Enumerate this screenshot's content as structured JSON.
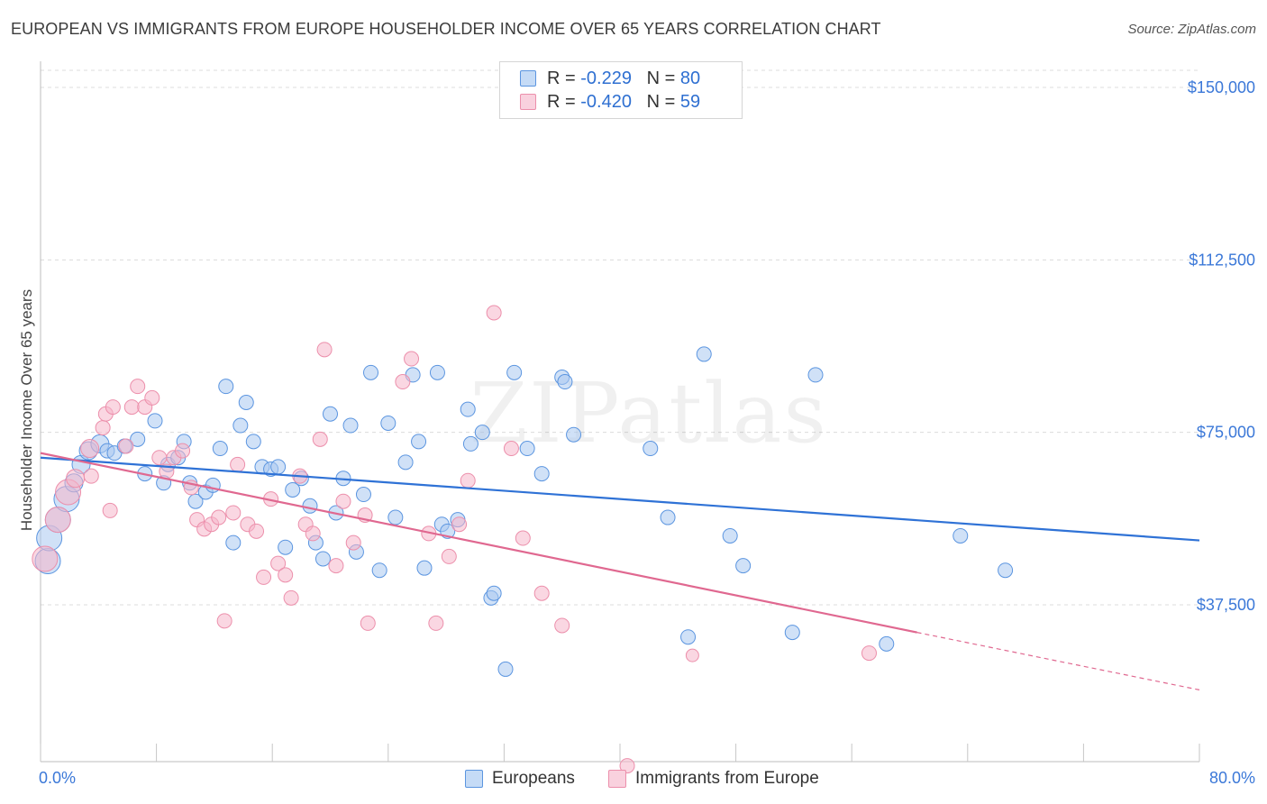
{
  "title": "EUROPEAN VS IMMIGRANTS FROM EUROPE HOUSEHOLDER INCOME OVER 65 YEARS CORRELATION CHART",
  "source": "Source: ZipAtlas.com",
  "watermark": "ZIPatlas",
  "legend": {
    "rows": [
      {
        "r_label": "R =",
        "r_value": "-0.229",
        "n_label": "N =",
        "n_value": "80",
        "color": "#a9c8f0"
      },
      {
        "r_label": "R =",
        "r_value": "-0.420",
        "n_label": "N =",
        "n_value": "59",
        "color": "#f6b7ca"
      }
    ]
  },
  "bottom_legend": [
    {
      "label": "Europeans",
      "color": "#a9c8f0"
    },
    {
      "label": "Immigrants from Europe",
      "color": "#f6b7ca"
    }
  ],
  "chart_data": {
    "type": "scatter",
    "ylabel": "Householder Income Over 65 years",
    "xlim": [
      0,
      80
    ],
    "ylim": [
      0,
      152000
    ],
    "x_tick_labels": [
      "0.0%",
      "80.0%"
    ],
    "y_ticks": [
      37500,
      75000,
      112500,
      150000
    ],
    "y_tick_labels": [
      "$37,500",
      "$75,000",
      "$112,500",
      "$150,000"
    ],
    "grid": true,
    "series": [
      {
        "name": "Europeans",
        "color": "#5b95e0",
        "fill": "#a9c8f0",
        "trend": {
          "x0": 0,
          "y0": 69500,
          "x1": 80,
          "y1": 51500,
          "color": "#2f72d6"
        },
        "points": [
          [
            0.5,
            47000,
            3
          ],
          [
            0.6,
            52000,
            3
          ],
          [
            1.2,
            56000,
            3
          ],
          [
            1.8,
            60500,
            3
          ],
          [
            2.3,
            64000,
            2
          ],
          [
            2.8,
            68000,
            2
          ],
          [
            3.3,
            71000,
            2
          ],
          [
            4.1,
            72500,
            2
          ],
          [
            4.6,
            71000,
            1
          ],
          [
            5.1,
            70500,
            1
          ],
          [
            5.8,
            72000,
            1
          ],
          [
            6.7,
            73500,
            1
          ],
          [
            7.2,
            66000,
            1
          ],
          [
            7.9,
            77500,
            1
          ],
          [
            8.5,
            64000,
            1
          ],
          [
            8.8,
            68000,
            1
          ],
          [
            9.5,
            69500,
            1
          ],
          [
            9.9,
            73000,
            1
          ],
          [
            10.3,
            64000,
            1
          ],
          [
            10.7,
            60000,
            1
          ],
          [
            11.4,
            62000,
            1
          ],
          [
            11.9,
            63500,
            1
          ],
          [
            12.4,
            71500,
            1
          ],
          [
            12.8,
            85000,
            1
          ],
          [
            13.3,
            51000,
            1
          ],
          [
            13.8,
            76500,
            1
          ],
          [
            14.2,
            81500,
            1
          ],
          [
            14.7,
            73000,
            1
          ],
          [
            15.3,
            67500,
            1
          ],
          [
            15.9,
            67000,
            1
          ],
          [
            16.4,
            67500,
            1
          ],
          [
            16.9,
            50000,
            1
          ],
          [
            17.4,
            62500,
            1
          ],
          [
            18.0,
            65000,
            1
          ],
          [
            18.6,
            59000,
            1
          ],
          [
            19.0,
            51000,
            1
          ],
          [
            19.5,
            47500,
            1
          ],
          [
            20.0,
            79000,
            1
          ],
          [
            20.4,
            57500,
            1
          ],
          [
            20.9,
            65000,
            1
          ],
          [
            21.4,
            76500,
            1
          ],
          [
            21.8,
            49000,
            1
          ],
          [
            22.3,
            61500,
            1
          ],
          [
            22.8,
            88000,
            1
          ],
          [
            23.4,
            45000,
            1
          ],
          [
            24.0,
            77000,
            1
          ],
          [
            24.5,
            56500,
            1
          ],
          [
            25.2,
            68500,
            1
          ],
          [
            25.7,
            87500,
            1
          ],
          [
            26.1,
            73000,
            1
          ],
          [
            26.5,
            45500,
            1
          ],
          [
            27.4,
            88000,
            1
          ],
          [
            27.7,
            55000,
            1
          ],
          [
            28.1,
            53500,
            1
          ],
          [
            28.8,
            56000,
            1
          ],
          [
            29.5,
            80000,
            1
          ],
          [
            29.7,
            72500,
            1
          ],
          [
            30.5,
            75000,
            1
          ],
          [
            31.1,
            39000,
            1
          ],
          [
            31.3,
            40000,
            1
          ],
          [
            32.1,
            23500,
            1
          ],
          [
            32.7,
            88000,
            1
          ],
          [
            33.6,
            71500,
            1
          ],
          [
            34.6,
            66000,
            1
          ],
          [
            36.0,
            87000,
            1
          ],
          [
            36.2,
            86000,
            1
          ],
          [
            36.8,
            74500,
            1
          ],
          [
            42.1,
            71500,
            1
          ],
          [
            43.3,
            56500,
            1
          ],
          [
            44.7,
            30500,
            1
          ],
          [
            45.8,
            92000,
            1
          ],
          [
            47.6,
            52500,
            1
          ],
          [
            48.5,
            46000,
            1
          ],
          [
            51.9,
            31500,
            1
          ],
          [
            53.5,
            87500,
            1
          ],
          [
            58.4,
            29000,
            1
          ],
          [
            63.5,
            52500,
            1
          ],
          [
            66.6,
            45000,
            1
          ]
        ]
      },
      {
        "name": "Immigrants from Europe",
        "color": "#ec8fab",
        "fill": "#f6b7ca",
        "trend": {
          "x0": 0,
          "y0": 70500,
          "x1": 60.5,
          "y1": 31500,
          "x_end": 80,
          "y_end": 19000,
          "color": "#e06890"
        },
        "points": [
          [
            0.3,
            47500,
            3
          ],
          [
            1.2,
            56000,
            3
          ],
          [
            1.9,
            62000,
            3
          ],
          [
            2.4,
            65000,
            2
          ],
          [
            3.4,
            71500,
            2
          ],
          [
            3.5,
            65500,
            1
          ],
          [
            4.3,
            76000,
            1
          ],
          [
            4.8,
            58000,
            1
          ],
          [
            4.5,
            79000,
            1
          ],
          [
            5.0,
            80500,
            1
          ],
          [
            5.9,
            72000,
            1
          ],
          [
            6.3,
            80500,
            1
          ],
          [
            6.7,
            85000,
            1
          ],
          [
            7.2,
            80500,
            1
          ],
          [
            7.7,
            82500,
            1
          ],
          [
            8.2,
            69500,
            1
          ],
          [
            8.7,
            66500,
            1
          ],
          [
            9.2,
            69500,
            1
          ],
          [
            9.8,
            71000,
            1
          ],
          [
            10.4,
            63000,
            1
          ],
          [
            10.8,
            56000,
            1
          ],
          [
            11.3,
            54000,
            1
          ],
          [
            11.8,
            55000,
            1
          ],
          [
            12.3,
            56500,
            1
          ],
          [
            12.7,
            34000,
            1
          ],
          [
            13.3,
            57500,
            1
          ],
          [
            13.6,
            68000,
            1
          ],
          [
            14.3,
            55000,
            1
          ],
          [
            14.9,
            53500,
            1
          ],
          [
            15.4,
            43500,
            1
          ],
          [
            15.9,
            60500,
            1
          ],
          [
            16.4,
            46500,
            1
          ],
          [
            16.9,
            44000,
            1
          ],
          [
            17.3,
            39000,
            1
          ],
          [
            17.9,
            65500,
            1
          ],
          [
            18.3,
            55000,
            1
          ],
          [
            18.8,
            53000,
            1
          ],
          [
            19.3,
            73500,
            1
          ],
          [
            19.6,
            93000,
            1
          ],
          [
            20.4,
            46000,
            1
          ],
          [
            20.9,
            60000,
            1
          ],
          [
            21.6,
            51000,
            1
          ],
          [
            22.4,
            57000,
            1
          ],
          [
            22.6,
            33500,
            1
          ],
          [
            25.0,
            86000,
            1
          ],
          [
            25.6,
            91000,
            1
          ],
          [
            26.8,
            53000,
            1
          ],
          [
            27.3,
            33500,
            1
          ],
          [
            28.2,
            48000,
            1
          ],
          [
            28.9,
            55000,
            1
          ],
          [
            29.5,
            64500,
            1
          ],
          [
            31.3,
            101000,
            1
          ],
          [
            32.5,
            71500,
            1
          ],
          [
            33.3,
            52000,
            1
          ],
          [
            34.6,
            40000,
            1
          ],
          [
            36.0,
            33000,
            1
          ],
          [
            40.5,
            2500,
            1
          ],
          [
            57.2,
            27000,
            1
          ],
          [
            45.0,
            26500,
            0
          ]
        ]
      }
    ]
  }
}
